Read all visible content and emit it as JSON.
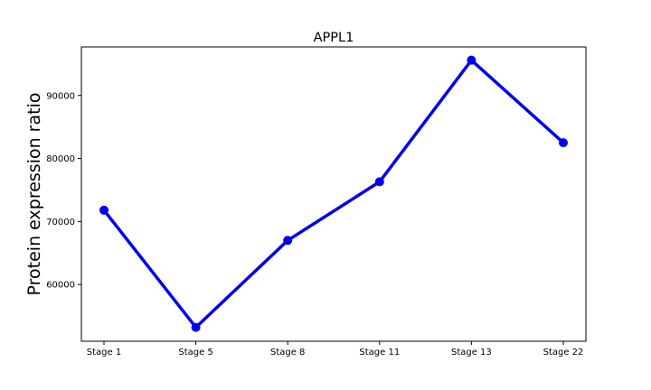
{
  "chart_data": {
    "type": "line",
    "title": "APPL1",
    "xlabel": "",
    "ylabel": "Protein expression ratio",
    "categories": [
      "Stage 1",
      "Stage 5",
      "Stage 8",
      "Stage 11",
      "Stage 13",
      "Stage 22"
    ],
    "series": [
      {
        "values": [
          71800,
          53200,
          67000,
          76300,
          95600,
          82500
        ],
        "color": "#0000ee"
      }
    ],
    "ylim": [
      51000,
      97700
    ],
    "yticks": [
      60000,
      70000,
      80000,
      90000
    ],
    "grid": false,
    "legend": "none"
  }
}
